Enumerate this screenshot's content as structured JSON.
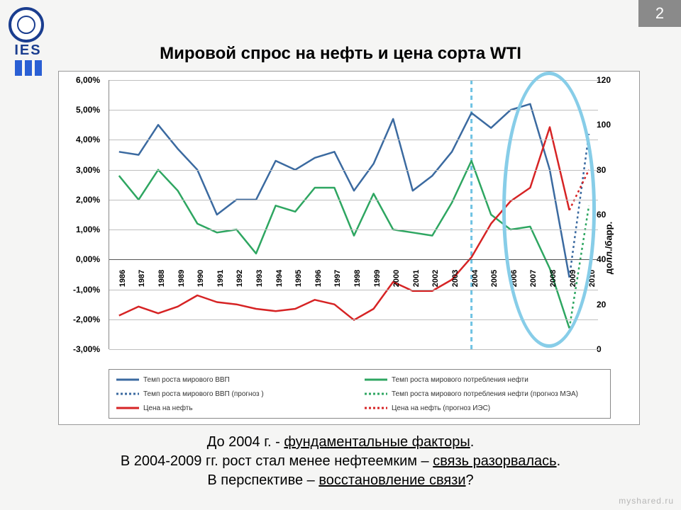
{
  "page_number": "2",
  "logo_text": "IES",
  "title": "Мировой спрос на нефть и цена сорта WTI",
  "chart": {
    "type": "multi-line",
    "background_color": "#ffffff",
    "grid_color": "#bfbfbf",
    "x_categories": [
      "1986",
      "1987",
      "1988",
      "1989",
      "1990",
      "1991",
      "1992",
      "1993",
      "1994",
      "1995",
      "1996",
      "1997",
      "1998",
      "1999",
      "2000",
      "2001",
      "2002",
      "2003",
      "2004",
      "2005",
      "2006",
      "2007",
      "2008",
      "2009",
      "2010"
    ],
    "y_left": {
      "min": -3,
      "max": 6,
      "step": 1,
      "format": "{v},00%"
    },
    "y_right": {
      "min": 0,
      "max": 120,
      "step": 20,
      "title": "долл./барр."
    },
    "vertical_marker_year": "2004",
    "vertical_marker_color": "#6fc3e3",
    "highlight_ellipse": {
      "x_center_year": "2008",
      "width_years": 4.8,
      "top_pct": 0,
      "bottom_pct": -2.5
    },
    "series": [
      {
        "name": "Темп роста мирового ВВП",
        "axis": "left",
        "color": "#3b6aa0",
        "width": 2.5,
        "style": "solid",
        "data": [
          3.6,
          3.5,
          4.5,
          3.7,
          3.0,
          1.5,
          2.0,
          2.0,
          3.3,
          3.0,
          3.4,
          3.6,
          2.3,
          3.2,
          4.7,
          2.3,
          2.8,
          3.6,
          4.9,
          4.4,
          5.0,
          5.2,
          3.0,
          -0.6,
          null
        ]
      },
      {
        "name": "Темп роста мирового потребления нефти",
        "axis": "left",
        "color": "#2ea661",
        "width": 2.5,
        "style": "solid",
        "data": [
          2.8,
          2.0,
          3.0,
          2.3,
          1.2,
          0.9,
          1.0,
          0.2,
          1.8,
          1.6,
          2.4,
          2.4,
          0.8,
          2.2,
          1.0,
          0.9,
          0.8,
          1.9,
          3.3,
          1.5,
          1.0,
          1.1,
          -0.3,
          -2.3,
          null
        ]
      },
      {
        "name": "Темп роста мирового ВВП (прогноз )",
        "axis": "left",
        "color": "#3b6aa0",
        "width": 2.5,
        "style": "dotted",
        "data": [
          null,
          null,
          null,
          null,
          null,
          null,
          null,
          null,
          null,
          null,
          null,
          null,
          null,
          null,
          null,
          null,
          null,
          null,
          null,
          null,
          null,
          null,
          null,
          -0.6,
          4.2
        ]
      },
      {
        "name": "Темп роста мирового потребления нефти (прогноз МЭА)",
        "axis": "left",
        "color": "#2ea661",
        "width": 2.5,
        "style": "dotted",
        "data": [
          null,
          null,
          null,
          null,
          null,
          null,
          null,
          null,
          null,
          null,
          null,
          null,
          null,
          null,
          null,
          null,
          null,
          null,
          null,
          null,
          null,
          null,
          null,
          -2.3,
          1.8
        ]
      },
      {
        "name": "Цена на нефть",
        "axis": "right",
        "color": "#d62324",
        "width": 2.5,
        "style": "solid",
        "data": [
          15,
          19,
          16,
          19,
          24,
          21,
          20,
          18,
          17,
          18,
          22,
          20,
          13,
          18,
          30,
          26,
          26,
          31,
          41,
          56,
          66,
          72,
          99,
          62,
          null
        ]
      },
      {
        "name": "Цена на нефть (прогноз ИЭС)",
        "axis": "right",
        "color": "#d62324",
        "width": 2.5,
        "style": "dotted",
        "data": [
          null,
          null,
          null,
          null,
          null,
          null,
          null,
          null,
          null,
          null,
          null,
          null,
          null,
          null,
          null,
          null,
          null,
          null,
          null,
          null,
          null,
          null,
          null,
          62,
          80
        ]
      }
    ]
  },
  "caption_lines": [
    {
      "pre": "До 2004 г. - ",
      "u": "фундаментальные факторы",
      "post": "."
    },
    {
      "pre": "В 2004-2009 гг. рост стал менее нефтеемким – ",
      "u": "связь разорвалась",
      "post": "."
    },
    {
      "pre": "В перспективе – ",
      "u": "восстановление связи",
      "post": "?"
    }
  ],
  "watermark": "myshared.ru"
}
